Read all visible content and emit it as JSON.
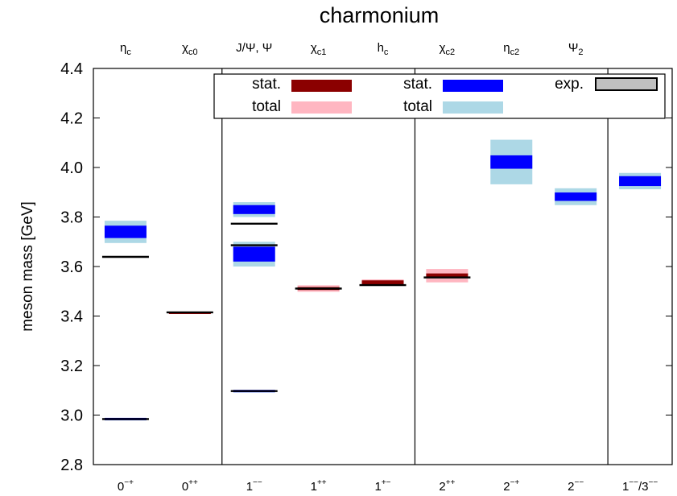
{
  "chart_data": {
    "type": "spectrum",
    "title": "charmonium",
    "ylabel": "meson mass [GeV]",
    "ylim": [
      2.8,
      4.4
    ],
    "yticks": [
      "2.8",
      "3.0",
      "3.2",
      "3.4",
      "3.6",
      "3.8",
      "4.0",
      "4.2",
      "4.4"
    ],
    "grid": false,
    "legend_position": "top",
    "legend": {
      "charm_stat": "stat.",
      "charm_total": "total",
      "light_stat": "stat.",
      "light_total": "total",
      "experiment": "exp."
    },
    "columns": [
      {
        "top_label": "ηc",
        "top_main": "η",
        "top_sub": "c",
        "bottom_label": "0−+",
        "bottom_main": "0",
        "bottom_sup": "−+"
      },
      {
        "top_label": "χc0",
        "top_main": "χ",
        "top_sub": "c0",
        "bottom_label": "0++",
        "bottom_main": "0",
        "bottom_sup": "++"
      },
      {
        "top_label": "J/Ψ, Ψ",
        "top_main": "J/Ψ, Ψ",
        "top_sub": "",
        "bottom_label": "1−−",
        "bottom_main": "1",
        "bottom_sup": "−−"
      },
      {
        "top_label": "χc1",
        "top_main": "χ",
        "top_sub": "c1",
        "bottom_label": "1++",
        "bottom_main": "1",
        "bottom_sup": "++"
      },
      {
        "top_label": "hc",
        "top_main": "h",
        "top_sub": "c",
        "bottom_label": "1+−",
        "bottom_main": "1",
        "bottom_sup": "+−"
      },
      {
        "top_label": "χc2",
        "top_main": "χ",
        "top_sub": "c2",
        "bottom_label": "2++",
        "bottom_main": "2",
        "bottom_sup": "++"
      },
      {
        "top_label": "ηc2",
        "top_main": "η",
        "top_sub": "c2",
        "bottom_label": "2−+",
        "bottom_main": "2",
        "bottom_sup": "−+"
      },
      {
        "top_label": "Ψ2",
        "top_main": "Ψ",
        "top_sub": "2",
        "bottom_label": "2−−",
        "bottom_main": "2",
        "bottom_sup": "−−"
      },
      {
        "top_label": "",
        "top_main": "",
        "top_sub": "",
        "bottom_label": "1−−/3−−",
        "bottom_main": "1",
        "bottom_sup": "−−",
        "bottom_main2": "/3",
        "bottom_sup2": "−−"
      }
    ],
    "separators_after_column": [
      1,
      4,
      7
    ],
    "states": [
      {
        "column": 0,
        "color": "blue",
        "mass": 2.984,
        "stat_err": 0.003,
        "total_err": 0.004
      },
      {
        "column": 0,
        "color": "blue",
        "mass": 3.74,
        "stat_err": 0.025,
        "total_err": 0.045
      },
      {
        "column": 1,
        "color": "red",
        "mass": 3.413,
        "stat_err": 0.004,
        "total_err": 0.005
      },
      {
        "column": 2,
        "color": "blue",
        "mass": 3.097,
        "stat_err": 0.003,
        "total_err": 0.004
      },
      {
        "column": 2,
        "color": "blue",
        "mass": 3.65,
        "stat_err": 0.03,
        "total_err": 0.05
      },
      {
        "column": 2,
        "color": "blue",
        "mass": 3.83,
        "stat_err": 0.018,
        "total_err": 0.03
      },
      {
        "column": 3,
        "color": "red",
        "mass": 3.511,
        "stat_err": 0.006,
        "total_err": 0.013
      },
      {
        "column": 4,
        "color": "red",
        "mass": 3.535,
        "stat_err": 0.009,
        "total_err": 0.013
      },
      {
        "column": 5,
        "color": "red",
        "mass": 3.563,
        "stat_err": 0.009,
        "total_err": 0.027
      },
      {
        "column": 6,
        "color": "blue",
        "mass": 4.022,
        "stat_err": 0.027,
        "total_err": 0.09
      },
      {
        "column": 7,
        "color": "blue",
        "mass": 3.882,
        "stat_err": 0.017,
        "total_err": 0.034
      },
      {
        "column": 8,
        "color": "blue",
        "mass": 3.945,
        "stat_err": 0.02,
        "total_err": 0.033
      }
    ],
    "experiment": [
      {
        "column": 0,
        "mass": 2.984
      },
      {
        "column": 0,
        "mass": 3.639
      },
      {
        "column": 1,
        "mass": 3.415
      },
      {
        "column": 2,
        "mass": 3.097
      },
      {
        "column": 2,
        "mass": 3.686
      },
      {
        "column": 2,
        "mass": 3.773
      },
      {
        "column": 3,
        "mass": 3.511
      },
      {
        "column": 4,
        "mass": 3.525
      },
      {
        "column": 5,
        "mass": 3.556
      }
    ],
    "colors": {
      "red_stat": "#8b0000",
      "red_total": "#ffb6c1",
      "blue_stat": "#0000ff",
      "blue_total": "#add8e6",
      "exp_fill": "#c0c0c0",
      "exp_line": "#000000"
    }
  }
}
